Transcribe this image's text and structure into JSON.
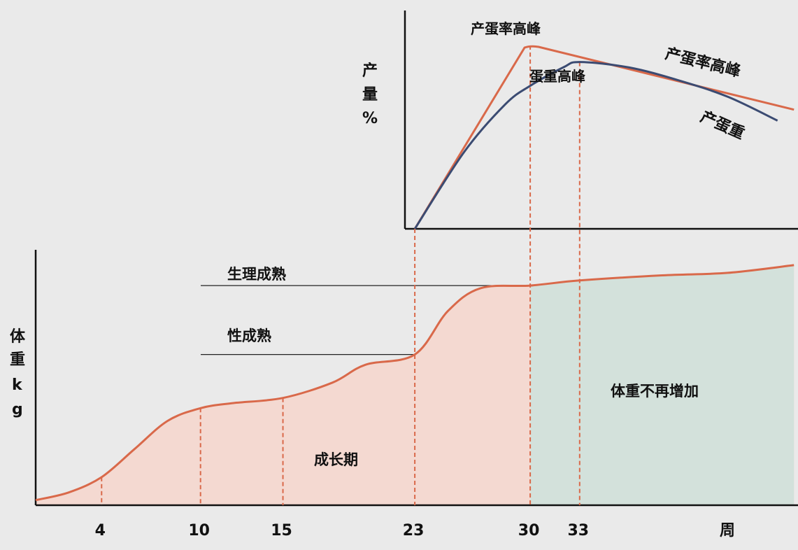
{
  "colors": {
    "background": "#eaeaea",
    "growth_fill": "#f4d9d1",
    "stable_fill": "#d3e1db",
    "orange_line": "#d9694a",
    "blue_line": "#3b4b72",
    "axis": "#111111",
    "guide_line": "#222222"
  },
  "chart_data": [
    {
      "type": "line",
      "title": "",
      "ylabel": "产量%",
      "series": [
        {
          "name": "产蛋率高峰",
          "points": [
            [
              23,
              0
            ],
            [
              30,
              100
            ],
            [
              46,
              65
            ]
          ]
        },
        {
          "name": "产蛋重",
          "points": [
            [
              23,
              0
            ],
            [
              26,
              42
            ],
            [
              28.5,
              68
            ],
            [
              30,
              78
            ],
            [
              32,
              88
            ],
            [
              33,
              91
            ],
            [
              36,
              88
            ],
            [
              39,
              81
            ],
            [
              42,
              72
            ],
            [
              45,
              59
            ]
          ]
        }
      ],
      "annotations": [
        "产蛋率高峰",
        "蛋重高峰",
        "产蛋重"
      ]
    },
    {
      "type": "area",
      "title": "",
      "xlabel": "周",
      "ylabel": "体重kg",
      "tick_labels": [
        "4",
        "10",
        "15",
        "23",
        "30",
        "33"
      ],
      "series": [
        {
          "name": "",
          "points": [
            [
              0,
              2
            ],
            [
              2,
              5
            ],
            [
              4,
              11
            ],
            [
              6,
              22
            ],
            [
              8,
              33
            ],
            [
              10,
              38
            ],
            [
              12,
              40
            ],
            [
              15,
              42
            ],
            [
              18,
              48
            ],
            [
              20,
              55
            ],
            [
              23,
              59
            ],
            [
              25,
              76
            ],
            [
              27,
              85
            ],
            [
              30,
              86
            ],
            [
              33,
              88
            ],
            [
              38,
              90
            ],
            [
              42,
              91
            ],
            [
              46,
              94
            ]
          ]
        }
      ],
      "guides": [
        {
          "label": "生理成熟",
          "y": 86
        },
        {
          "label": "性成熟",
          "y": 59
        }
      ],
      "regions": [
        {
          "label": "成长期",
          "from": 0,
          "to": 30
        },
        {
          "label": "体重不再增加",
          "from": 30,
          "to": 46
        }
      ]
    }
  ]
}
